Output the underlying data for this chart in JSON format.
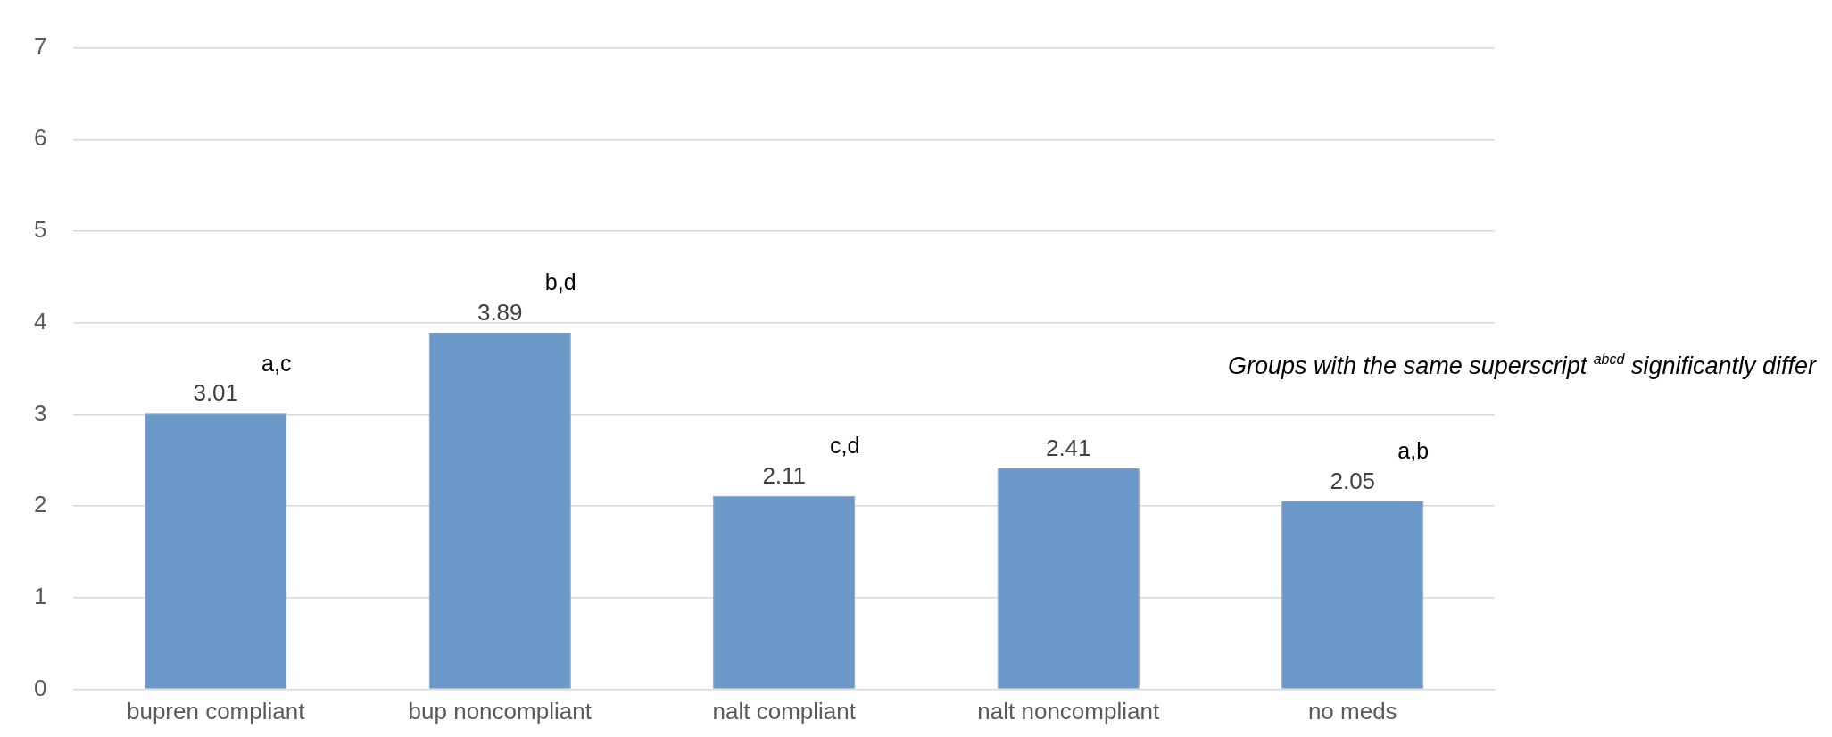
{
  "chart_data": {
    "type": "bar",
    "categories": [
      "bupren compliant",
      "bup noncompliant",
      "nalt compliant",
      "nalt noncompliant",
      "no meds"
    ],
    "values": [
      3.01,
      3.89,
      2.11,
      2.41,
      2.05
    ],
    "color": "#6a98c8",
    "ylim": [
      0,
      7
    ],
    "yticks": [
      0,
      1,
      2,
      3,
      4,
      5,
      6,
      7
    ],
    "grid": "y",
    "data_labels": true,
    "legend": false,
    "annotations": [
      {
        "text": "a,c",
        "x": "bupren compliant",
        "y": 3.01
      },
      {
        "text": "b,d",
        "x": "bup noncompliant",
        "y": 3.89
      },
      {
        "text": "c,d",
        "x": "nalt compliant",
        "y": 2.11
      },
      {
        "text": "a,b",
        "x": "no meds",
        "y": 2.05
      },
      "Groups with the same superscript $^{abcd}$ significantly differ"
    ]
  }
}
